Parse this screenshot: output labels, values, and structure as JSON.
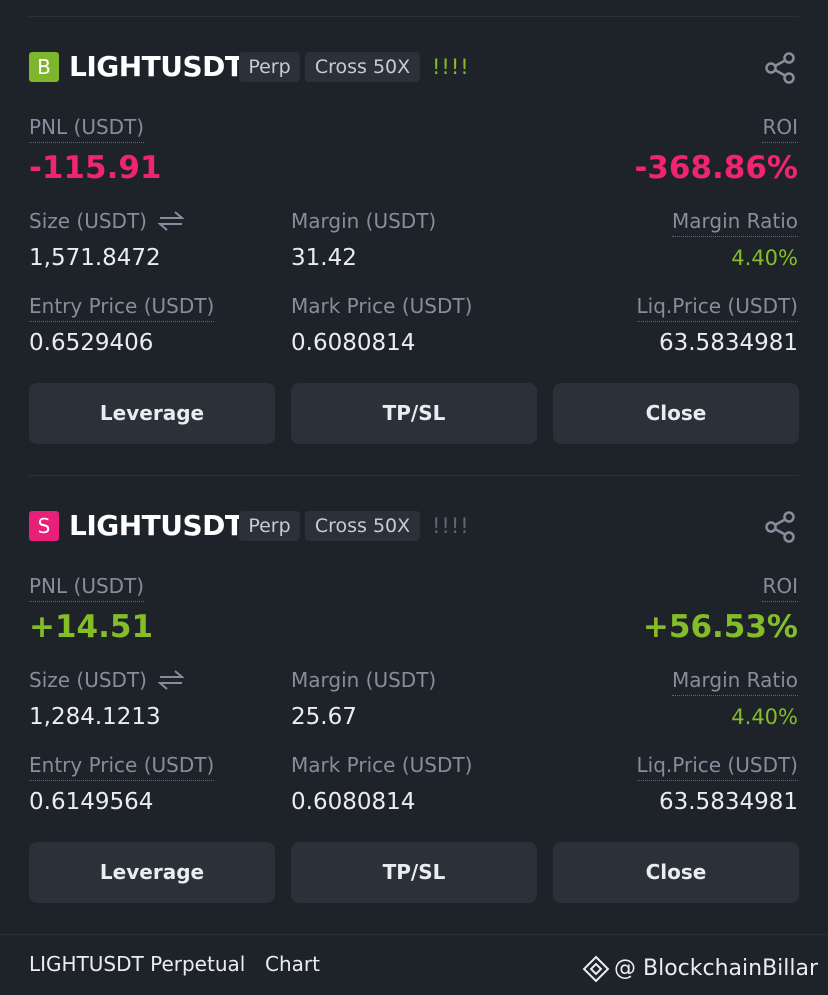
{
  "positions": [
    {
      "side": "B",
      "symbol": "LIGHTUSDT",
      "tags": [
        "Perp",
        "Cross 50X"
      ],
      "indicator": "!!!!",
      "pnl": {
        "label": "PNL (USDT)",
        "value": "-115.91"
      },
      "roi": {
        "label": "ROI",
        "value": "-368.86%"
      },
      "size": {
        "label": "Size (USDT)",
        "value": "1,571.8472"
      },
      "margin": {
        "label": "Margin (USDT)",
        "value": "31.42"
      },
      "margin_ratio": {
        "label": "Margin Ratio",
        "value": "4.40%"
      },
      "entry_price": {
        "label": "Entry Price (USDT)",
        "value": "0.6529406"
      },
      "mark_price": {
        "label": "Mark Price (USDT)",
        "value": "0.6080814"
      },
      "liq_price": {
        "label": "Liq.Price (USDT)",
        "value": "63.5834981"
      },
      "buttons": [
        "Leverage",
        "TP/SL",
        "Close"
      ]
    },
    {
      "side": "S",
      "symbol": "LIGHTUSDT",
      "tags": [
        "Perp",
        "Cross 50X"
      ],
      "indicator": "!!!!",
      "pnl": {
        "label": "PNL (USDT)",
        "value": "+14.51"
      },
      "roi": {
        "label": "ROI",
        "value": "+56.53%"
      },
      "size": {
        "label": "Size (USDT)",
        "value": "1,284.1213"
      },
      "margin": {
        "label": "Margin (USDT)",
        "value": "25.67"
      },
      "margin_ratio": {
        "label": "Margin Ratio",
        "value": "4.40%"
      },
      "entry_price": {
        "label": "Entry Price (USDT)",
        "value": "0.6149564"
      },
      "mark_price": {
        "label": "Mark Price (USDT)",
        "value": "0.6080814"
      },
      "liq_price": {
        "label": "Liq.Price (USDT)",
        "value": "63.5834981"
      },
      "buttons": [
        "Leverage",
        "TP/SL",
        "Close"
      ]
    }
  ],
  "footer": {
    "title": "LIGHTUSDT Perpetual",
    "link": "Chart"
  },
  "watermark": "@ BlockchainBillar"
}
